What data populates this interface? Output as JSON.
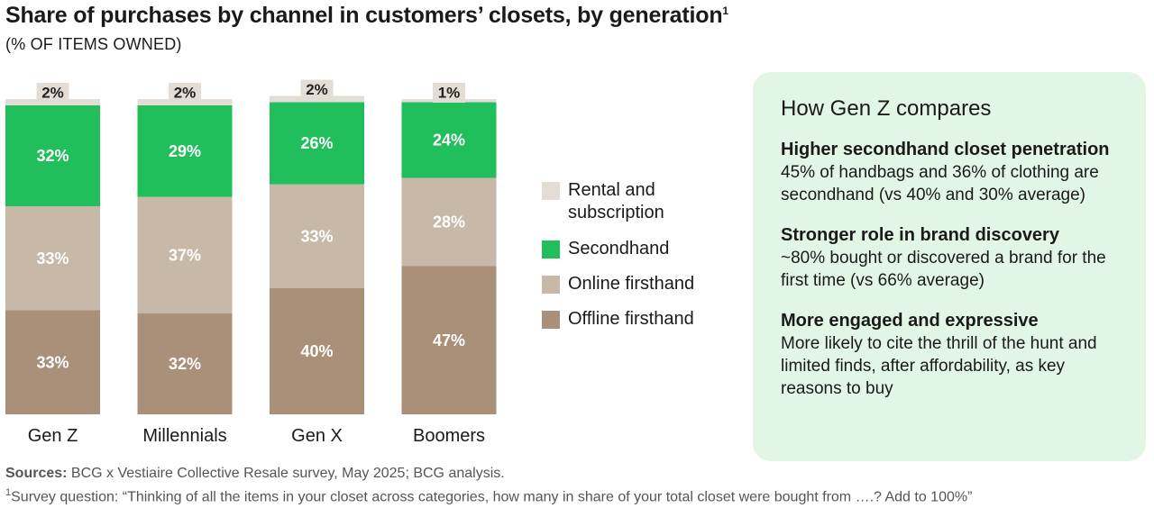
{
  "title": "Share of purchases by channel in customers’ closets, by generation",
  "title_footnote_mark": "1",
  "subtitle": "(% OF ITEMS OWNED)",
  "chart_data": {
    "type": "bar",
    "stacked": true,
    "title": "Share of purchases by channel in customers’ closets, by generation",
    "ylabel": "% of items owned",
    "ylim": [
      0,
      100
    ],
    "grid": false,
    "legend_position": "right",
    "categories": [
      "Gen Z",
      "Millennials",
      "Gen X",
      "Boomers"
    ],
    "series": [
      {
        "name": "Offline firsthand",
        "values": [
          33,
          32,
          40,
          47
        ],
        "color": "#a99078",
        "label_color": "#ffffff"
      },
      {
        "name": "Online firsthand",
        "values": [
          33,
          37,
          33,
          28
        ],
        "color": "#c7b8a7",
        "label_color": "#ffffff"
      },
      {
        "name": "Secondhand",
        "values": [
          32,
          29,
          26,
          24
        ],
        "color": "#21bf5b",
        "label_color": "#ffffff"
      },
      {
        "name": "Rental and subscription",
        "values": [
          2,
          2,
          2,
          1
        ],
        "color": "#e4ddd6",
        "label_color": "#222222"
      }
    ]
  },
  "legend": [
    {
      "label": "Rental and subscription",
      "color": "#e4ddd6"
    },
    {
      "label": "Secondhand",
      "color": "#21bf5b"
    },
    {
      "label": "Online firsthand",
      "color": "#c7b8a7"
    },
    {
      "label": "Offline firsthand",
      "color": "#a99078"
    }
  ],
  "panel": {
    "title": "How Gen Z compares",
    "sections": [
      {
        "heading": "Higher secondhand closet penetration",
        "body": "45% of handbags and 36% of clothing are secondhand (vs 40% and 30% average)"
      },
      {
        "heading": "Stronger role in brand discovery",
        "body": "~80% bought or discovered a brand for the first time (vs 66% average)"
      },
      {
        "heading": "More engaged and expressive",
        "body": "More likely to cite the thrill of the hunt and limited finds, after affordability, as key reasons to buy"
      }
    ]
  },
  "sources_label": "Sources:",
  "sources_text": " BCG x Vestiaire Collective Resale survey, May 2025; BCG analysis.",
  "footnote_mark": "1",
  "footnote_text": "Survey question: “Thinking of all the items in your closet across categories, how many in share of your total closet were bought from ….? Add to 100%”"
}
